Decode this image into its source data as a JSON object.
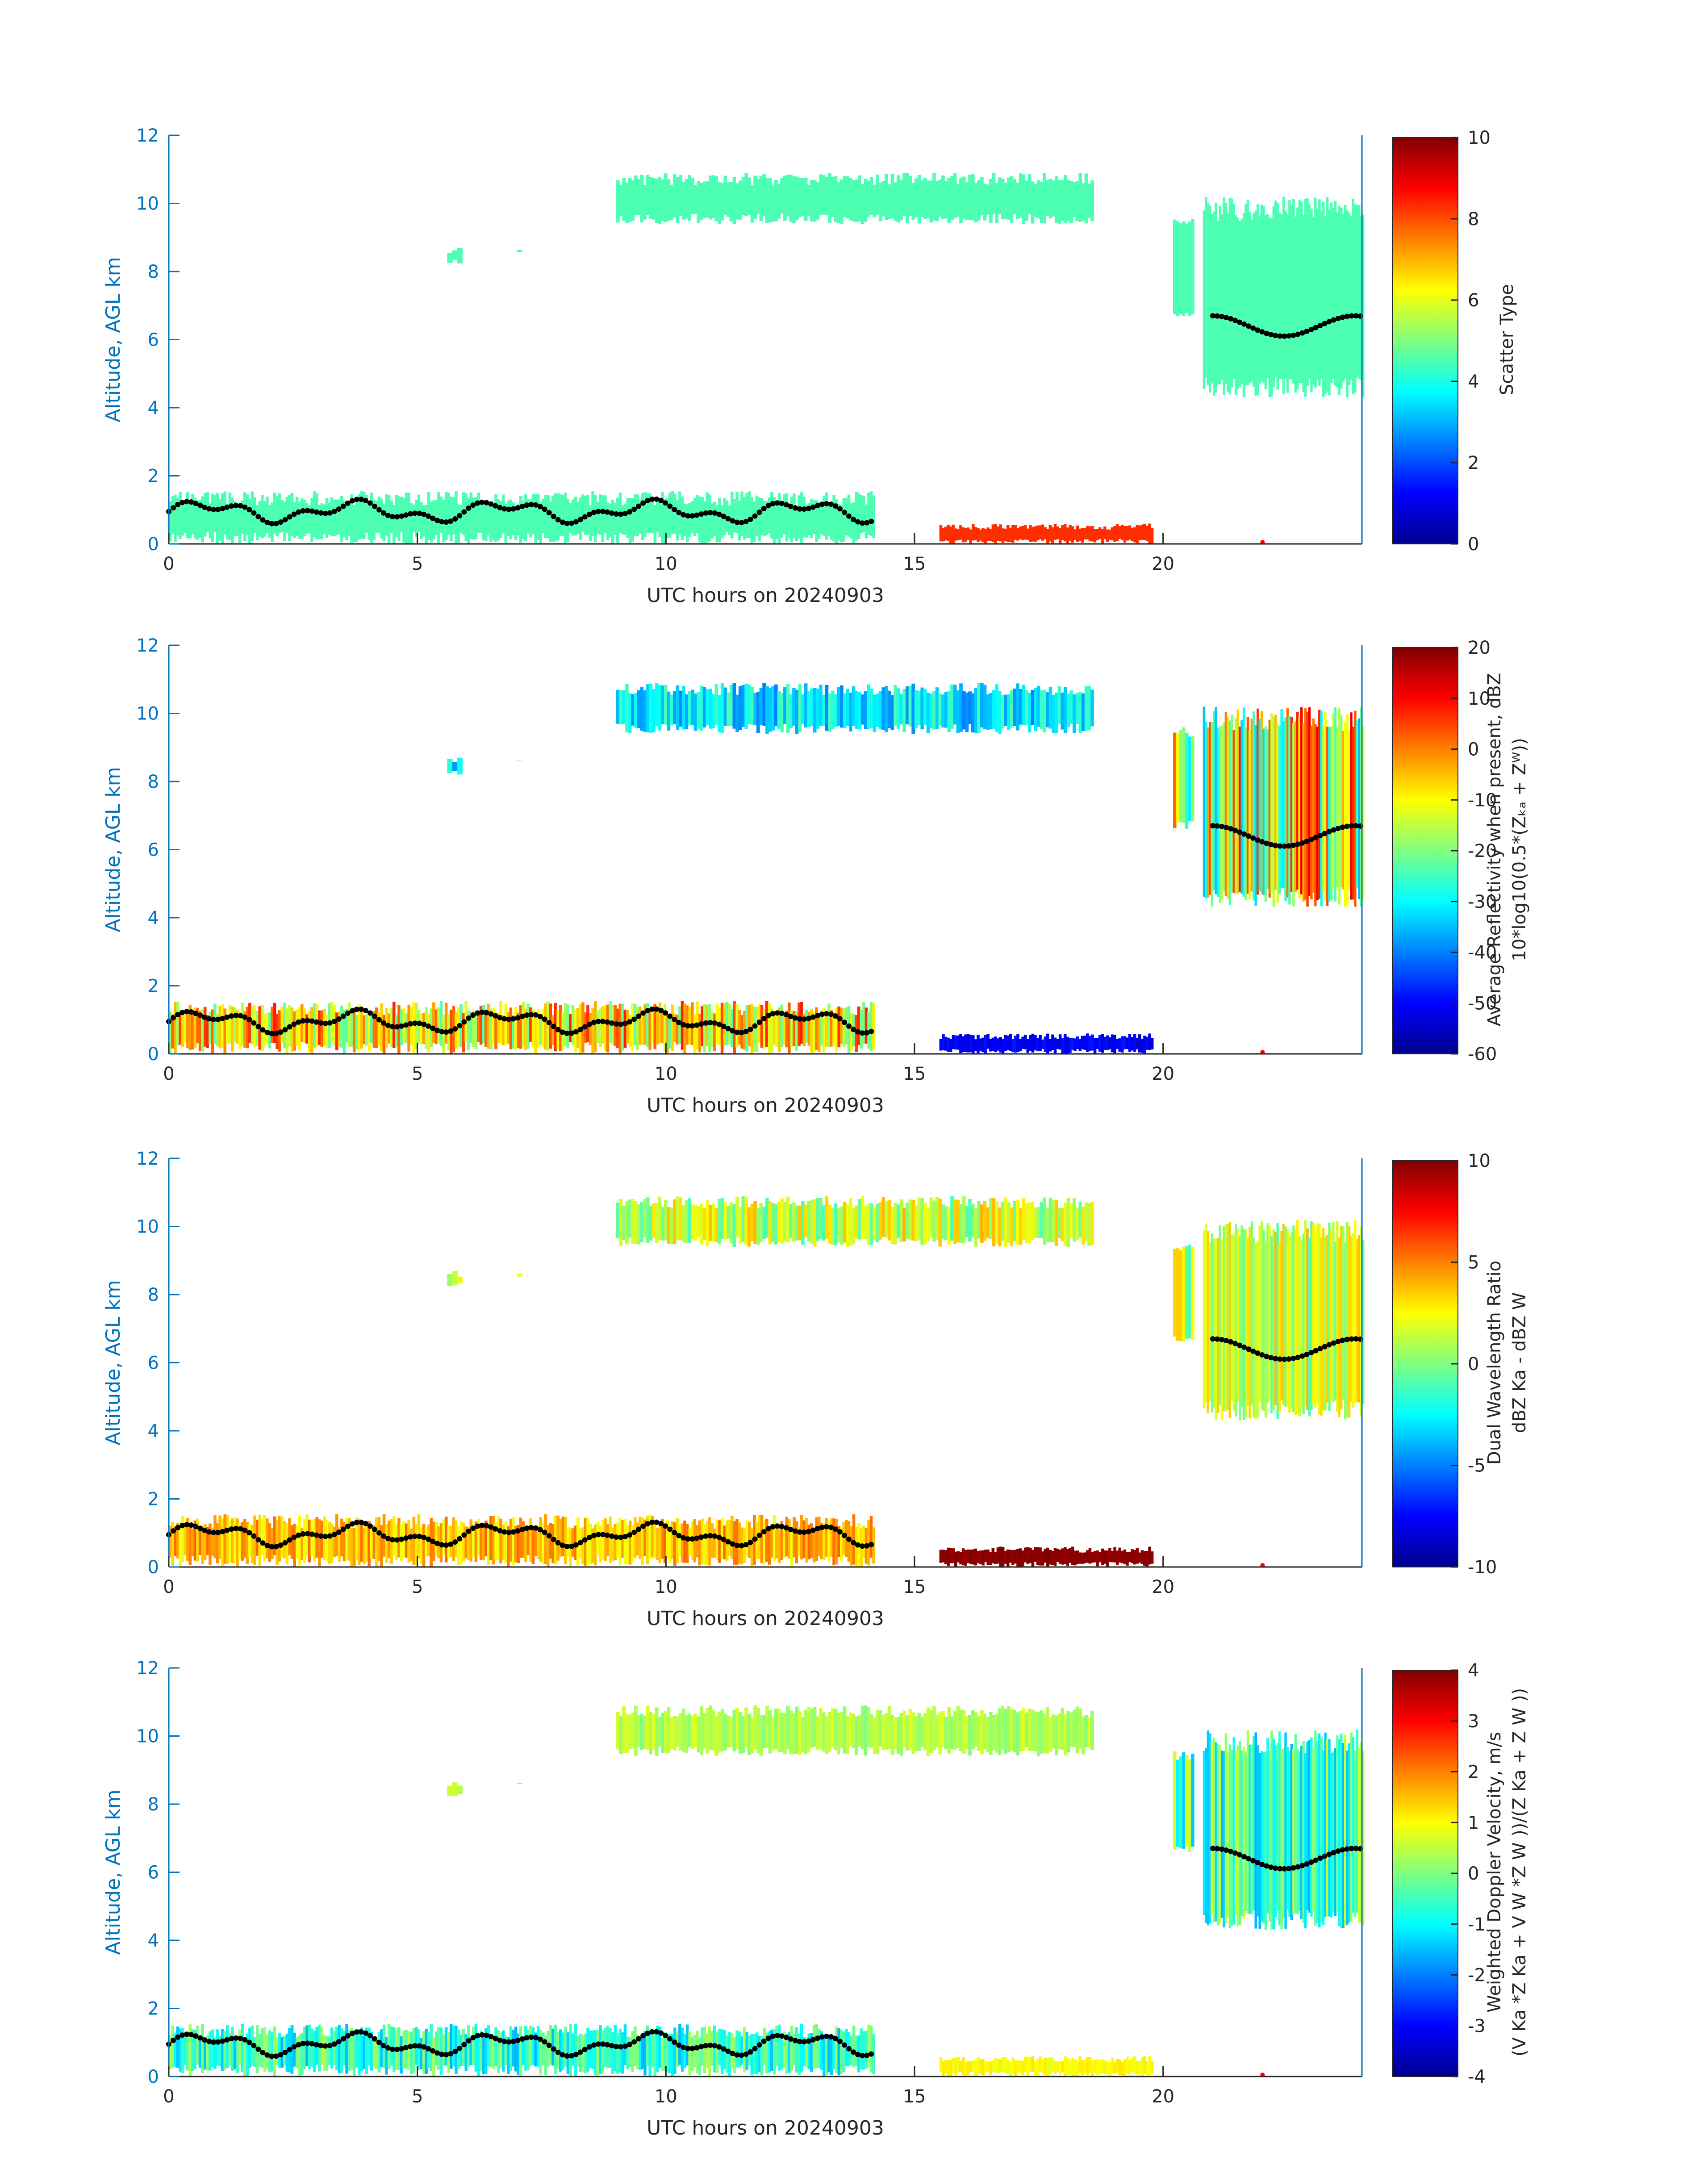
{
  "chart_data": [
    {
      "type": "heatmap",
      "xlabel": "UTC hours on 20240903",
      "ylabel": "Altitude, AGL km",
      "xlim": [
        0,
        24
      ],
      "ylim": [
        0,
        12
      ],
      "xticks": [
        "0",
        "5",
        "10",
        "15",
        "20"
      ],
      "yticks": [
        "0",
        "2",
        "4",
        "6",
        "8",
        "10",
        "12"
      ],
      "colorbar": {
        "label_lines": [
          "Scatter Type"
        ],
        "range": [
          0,
          10
        ],
        "ticks": [
          "0",
          "2",
          "4",
          "6",
          "8",
          "10"
        ]
      }
    },
    {
      "type": "heatmap",
      "xlabel": "UTC hours on 20240903",
      "ylabel": "Altitude, AGL km",
      "xlim": [
        0,
        24
      ],
      "ylim": [
        0,
        12
      ],
      "xticks": [
        "0",
        "5",
        "10",
        "15",
        "20"
      ],
      "yticks": [
        "0",
        "2",
        "4",
        "6",
        "8",
        "10",
        "12"
      ],
      "colorbar": {
        "label_lines": [
          "Average Reflectivity when present, dBZ",
          "10*log10(0.5*(Zₖₐ + Zᵂ))"
        ],
        "range": [
          -60,
          20
        ],
        "ticks": [
          "-60",
          "-50",
          "-40",
          "-30",
          "-20",
          "-10",
          "0",
          "10",
          "20"
        ]
      }
    },
    {
      "type": "heatmap",
      "xlabel": "UTC hours on 20240903",
      "ylabel": "Altitude, AGL km",
      "xlim": [
        0,
        24
      ],
      "ylim": [
        0,
        12
      ],
      "xticks": [
        "0",
        "5",
        "10",
        "15",
        "20"
      ],
      "yticks": [
        "0",
        "2",
        "4",
        "6",
        "8",
        "10",
        "12"
      ],
      "colorbar": {
        "label_lines": [
          "Dual Wavelength Ratio",
          "dBZ Ka - dBZ W"
        ],
        "range": [
          -10,
          10
        ],
        "ticks": [
          "-10",
          "-5",
          "0",
          "5",
          "10"
        ]
      }
    },
    {
      "type": "heatmap",
      "xlabel": "UTC hours on 20240903",
      "ylabel": "Altitude, AGL km",
      "xlim": [
        0,
        24
      ],
      "ylim": [
        0,
        12
      ],
      "xticks": [
        "0",
        "5",
        "10",
        "15",
        "20"
      ],
      "yticks": [
        "0",
        "2",
        "4",
        "6",
        "8",
        "10",
        "12"
      ],
      "colorbar": {
        "label_lines": [
          "Weighted Doppler Velocity, m/s",
          "(V Ka *Z Ka + V W *Z W ))/(Z Ka + Z W ))"
        ],
        "range": [
          -4,
          4
        ],
        "ticks": [
          "-4",
          "-3",
          "-2",
          "-1",
          "0",
          "1",
          "2",
          "3",
          "4"
        ]
      }
    }
  ],
  "colors": {
    "axis_x": "#262626",
    "axis_y": "#0072BD",
    "cloud_base_marker": "#000000",
    "surface_marker": "#ff0000"
  }
}
